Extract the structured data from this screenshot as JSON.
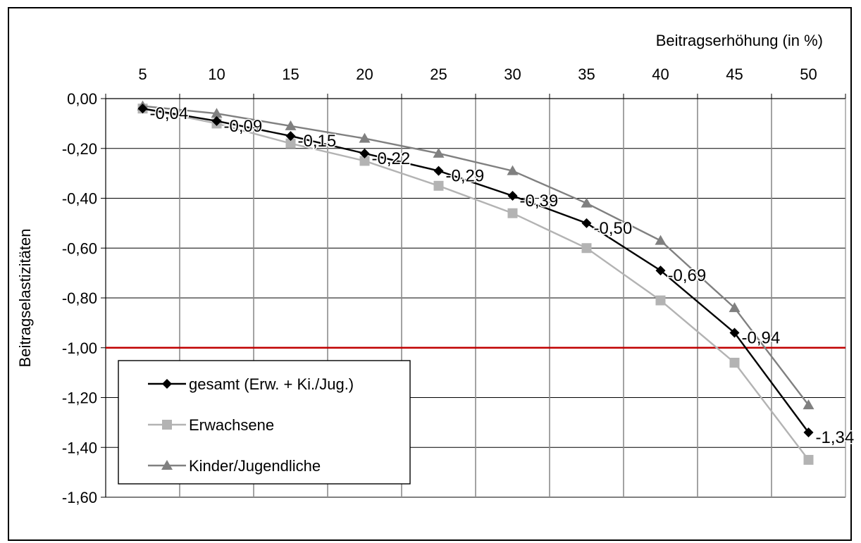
{
  "chart_data": {
    "type": "line",
    "xlabel": "Beitragserhöhung (in %)",
    "ylabel": "Beitragselastizitäten",
    "x": [
      5,
      10,
      15,
      20,
      25,
      30,
      35,
      40,
      45,
      50
    ],
    "x_tick_labels": [
      "5",
      "10",
      "15",
      "20",
      "25",
      "30",
      "35",
      "40",
      "45",
      "50"
    ],
    "y_tick_labels": [
      "0,00",
      "-0,20",
      "-0,40",
      "-0,60",
      "-0,80",
      "-1,00",
      "-1,20",
      "-1,40",
      "-1,60"
    ],
    "ylim": [
      -1.6,
      0
    ],
    "x_axis_position": "top",
    "grid": true,
    "legend_position": "bottom-left",
    "reference_line": {
      "y": -1.0,
      "color": "#c00000"
    },
    "series": [
      {
        "name": "gesamt (Erw. + Ki./Jug.)",
        "marker": "diamond",
        "color": "#000000",
        "values": [
          -0.04,
          -0.09,
          -0.15,
          -0.22,
          -0.29,
          -0.39,
          -0.5,
          -0.69,
          -0.94,
          -1.34
        ],
        "data_labels": [
          "-0,04",
          "-0,09",
          "-0,15",
          "-0,22",
          "-0,29",
          "-0,39",
          "-0,50",
          "-0,69",
          "-0,94",
          "-1,34"
        ]
      },
      {
        "name": "Erwachsene",
        "marker": "square",
        "color": "#b3b3b3",
        "values": [
          -0.04,
          -0.1,
          -0.18,
          -0.25,
          -0.35,
          -0.46,
          -0.6,
          -0.81,
          -1.06,
          -1.45
        ]
      },
      {
        "name": "Kinder/Jugendliche",
        "marker": "triangle",
        "color": "#808080",
        "values": [
          -0.03,
          -0.06,
          -0.11,
          -0.16,
          -0.22,
          -0.29,
          -0.42,
          -0.57,
          -0.84,
          -1.23
        ]
      }
    ]
  }
}
